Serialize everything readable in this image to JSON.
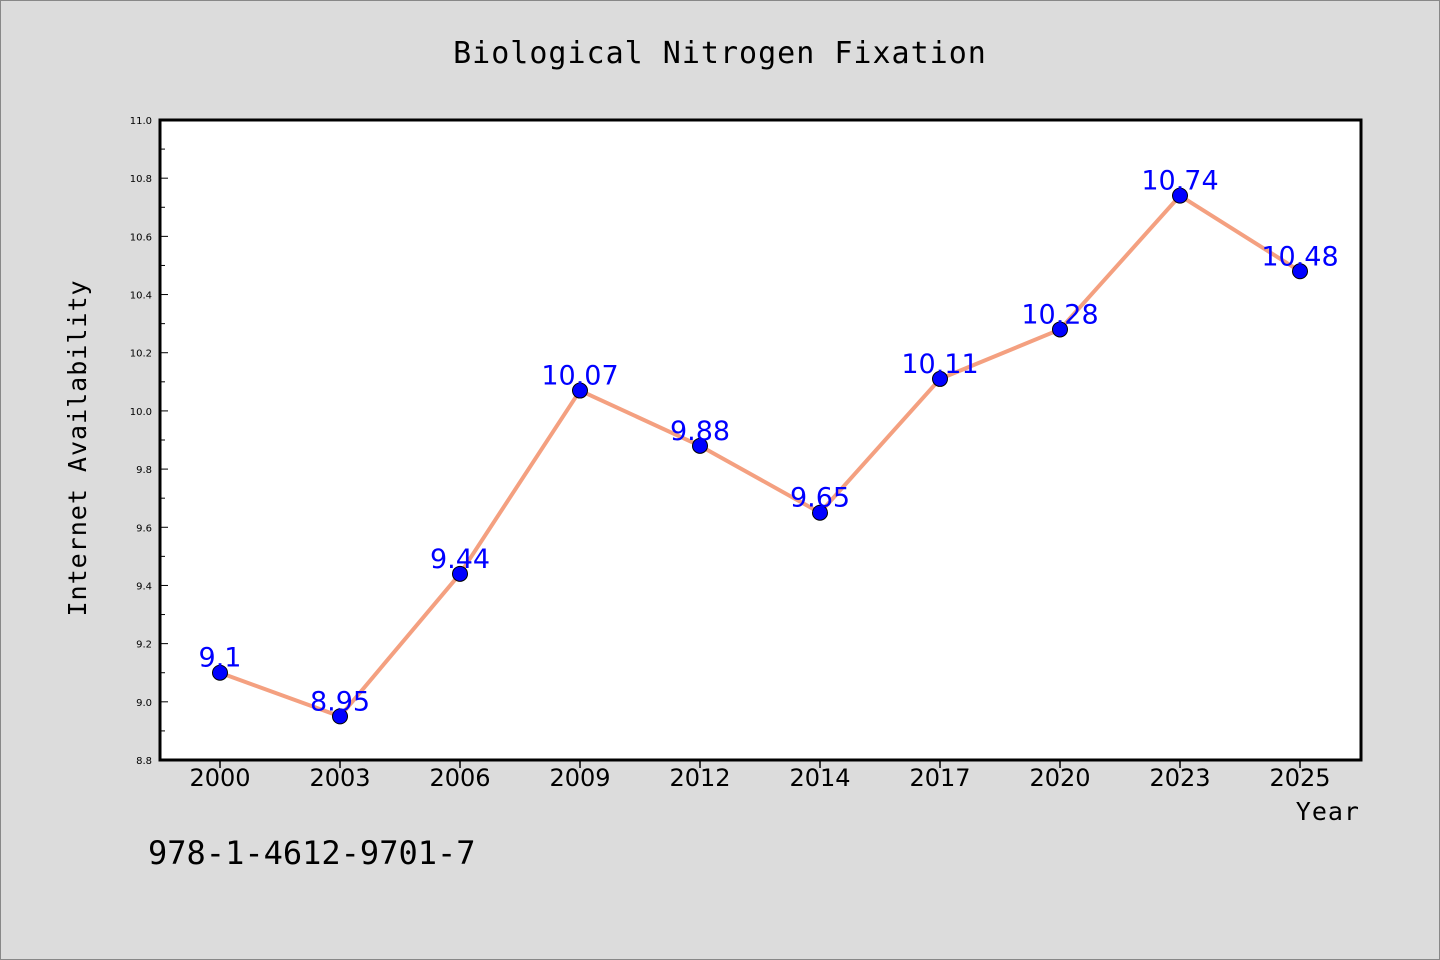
{
  "chart_data": {
    "type": "line",
    "title": "Biological Nitrogen Fixation",
    "xlabel": "Year",
    "ylabel": "Internet Availability",
    "categories": [
      "2000",
      "2003",
      "2006",
      "2009",
      "2012",
      "2014",
      "2017",
      "2020",
      "2023",
      "2025"
    ],
    "series": [
      {
        "values": [
          9.1,
          8.95,
          9.44,
          10.07,
          9.88,
          9.65,
          10.11,
          10.28,
          10.74,
          10.48
        ]
      }
    ],
    "data_labels": [
      "9.1",
      "8.95",
      "9.44",
      "10.07",
      "9.88",
      "9.65",
      "10.11",
      "10.28",
      "10.74",
      "10.48"
    ],
    "ylim": [
      8.8,
      11.0
    ],
    "yticks": [
      "8.8",
      "9.0",
      "9.2",
      "9.4",
      "9.6",
      "9.8",
      "10.0",
      "10.2",
      "10.4",
      "10.6",
      "10.8",
      "11.0"
    ],
    "grid": false,
    "colors": {
      "line": "#f4a080",
      "marker": "#0000ff",
      "label": "#0000ff",
      "background": "#dcdcdc",
      "plot_bg": "#ffffff"
    }
  },
  "footer": {
    "isbn": "978-1-4612-9701-7"
  }
}
